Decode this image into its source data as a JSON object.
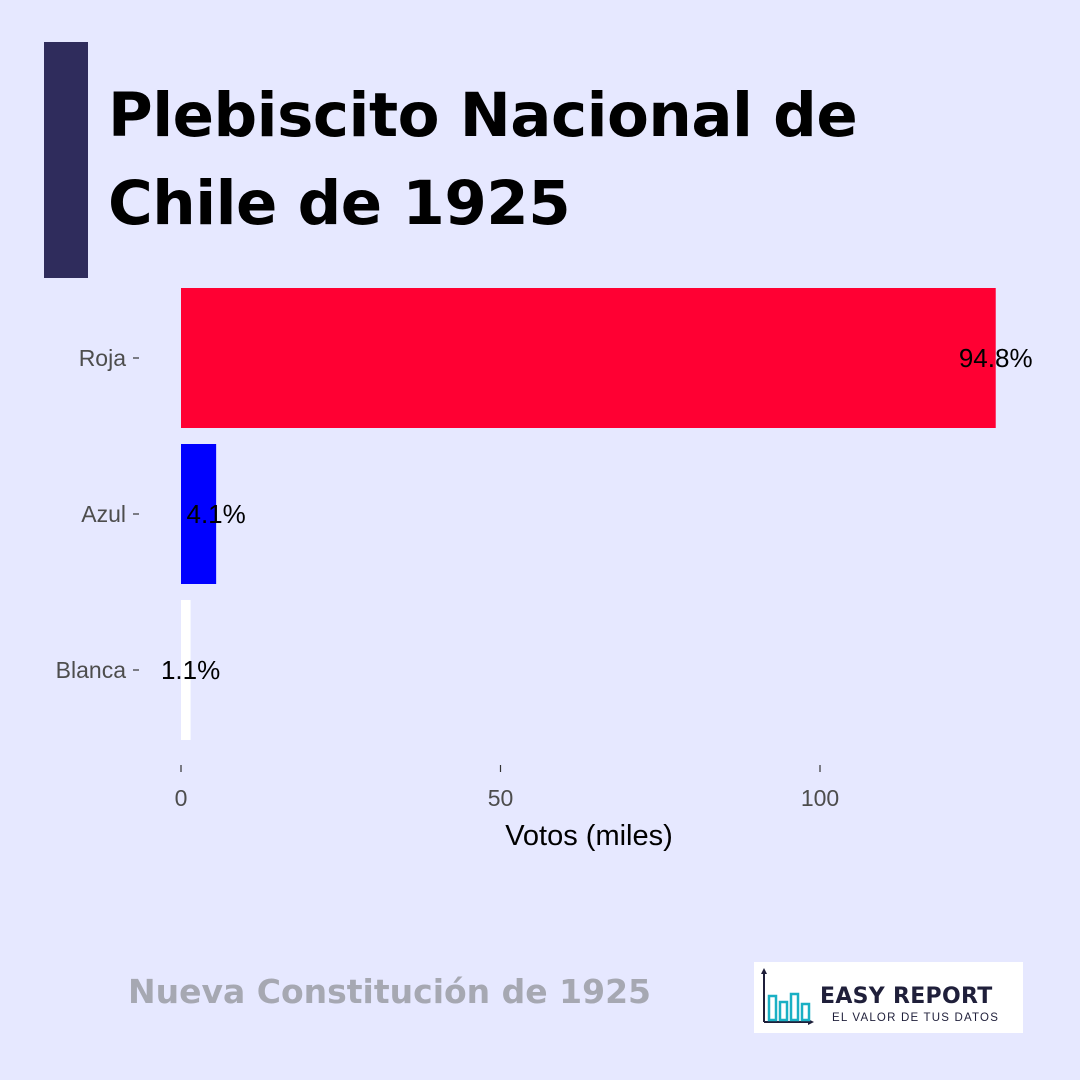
{
  "header": {
    "title_line1": "Plebiscito Nacional de",
    "title_line2": "Chile de 1925"
  },
  "footer": {
    "subtitle": "Nueva Constitución de 1925",
    "logo_name": "EASY REPORT",
    "logo_tagline": "EL VALOR DE TUS DATOS"
  },
  "colors": {
    "background": "#e6e8ff",
    "accent_bar": "#2f2c5c",
    "roja": "#ff0033",
    "azul": "#0000ff",
    "blanca": "#ffffff",
    "logo_teal": "#1ab0c4"
  },
  "chart_data": {
    "type": "bar",
    "orientation": "horizontal",
    "categories": [
      "Roja",
      "Azul",
      "Blanca"
    ],
    "values": [
      127.5,
      5.5,
      1.5
    ],
    "labels": [
      "94.8%",
      "4.1%",
      "1.1%"
    ],
    "colors": [
      "#ff0033",
      "#0000ff",
      "#ffffff"
    ],
    "xlabel": "Votos (miles)",
    "ylabel": "",
    "xlim": [
      0,
      135
    ],
    "xticks": [
      0,
      50,
      100
    ],
    "grid": false
  }
}
